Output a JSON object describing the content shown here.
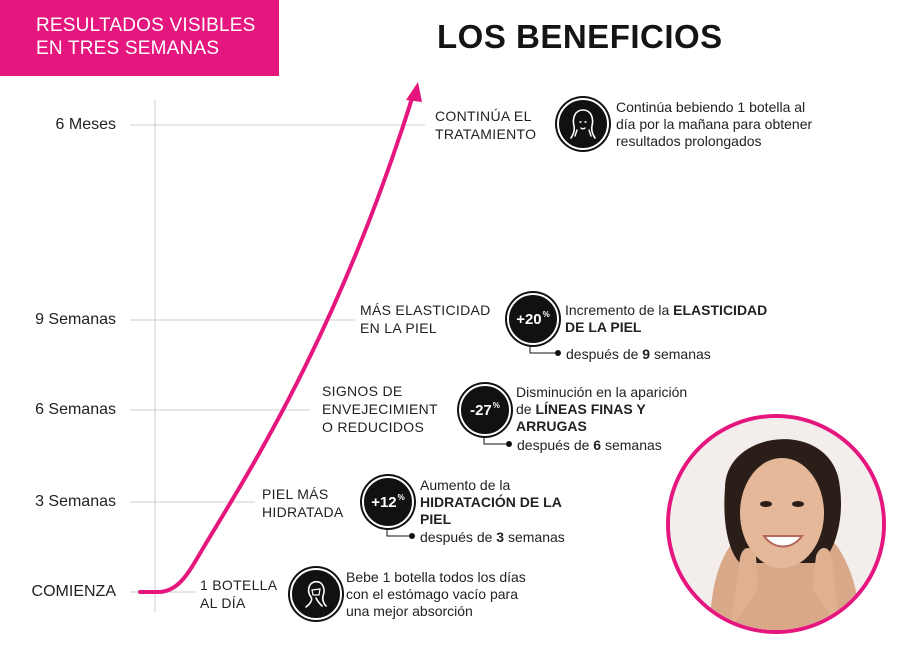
{
  "banner": {
    "line1": "RESULTADOS VISIBLES",
    "line2": "EN TRES SEMANAS"
  },
  "title": "LOS BENEFICIOS",
  "yaxis": [
    "6 Meses",
    "9 Semanas",
    "6 Semanas",
    "3 Semanas",
    "COMIENZA"
  ],
  "steps": {
    "s0": {
      "l1": "1 BOTELLA",
      "l2": "AL DÍA",
      "desc": [
        "Bebe 1 botella todos los días",
        "con el estómago vacío para",
        "una mejor absorción"
      ]
    },
    "s1": {
      "l1": "PIEL MÁS",
      "l2": "HIDRATADA",
      "badge": "+12",
      "pct": "%",
      "desc1": "Aumento de la",
      "desc2": "HIDRATACIÓN DE LA",
      "desc3": "PIEL",
      "after_pre": "después de ",
      "after_num": "3",
      "after_post": " semanas"
    },
    "s2": {
      "l1": "SIGNOS DE",
      "l2": "ENVEJECIMIENT",
      "l3": "O REDUCIDOS",
      "badge": "-27",
      "pct": "%",
      "desc1": "Disminución en la aparición",
      "desc2a": "de ",
      "desc2b": "LÍNEAS FINAS Y",
      "desc3": "ARRUGAS",
      "after_pre": "después de ",
      "after_num": "6",
      "after_post": " semanas"
    },
    "s3": {
      "l1": "MÁS ELASTICIDAD",
      "l2": "EN LA PIEL",
      "badge": "+20",
      "pct": "%",
      "desc1a": "Incremento de la ",
      "desc1b": "ELASTICIDAD",
      "desc2": "DE LA PIEL",
      "after_pre": "después de ",
      "after_num": "9",
      "after_post": " semanas"
    },
    "s4": {
      "l1": "CONTINÚA EL",
      "l2": "TRATAMIENTO",
      "desc": [
        "Continúa bebiendo 1 botella al",
        "día por la mañana para obtener",
        "resultados prolongados"
      ]
    }
  },
  "colors": {
    "accent": "#e5177e",
    "dark": "#111111",
    "gridline": "#cfcfcf"
  },
  "icons": {
    "woman": "woman-silhouette-icon",
    "photo": "smiling-woman-photo"
  }
}
